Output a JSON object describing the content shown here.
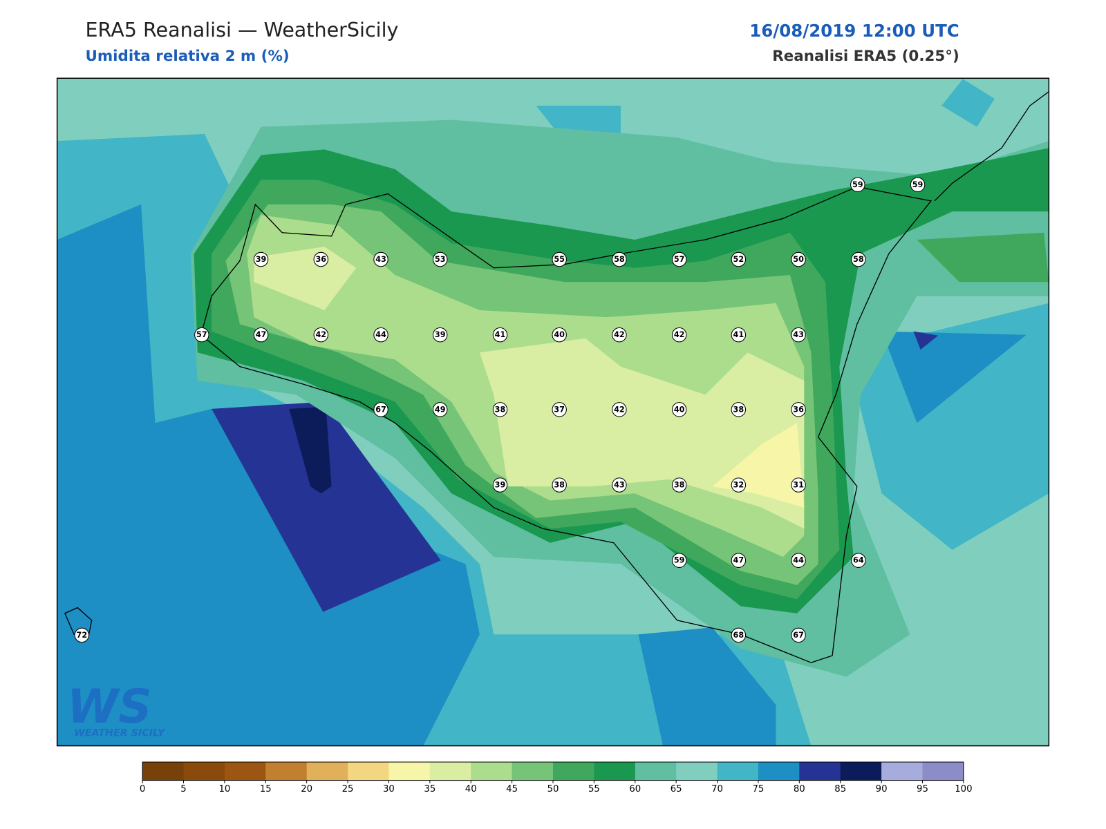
{
  "header": {
    "title": "ERA5 Reanalisi — WeatherSicily",
    "subtitle": "Umidita relativa 2 m (%)",
    "datetime": "16/08/2019 12:00 UTC",
    "source": "Reanalisi ERA5 (0.25°)"
  },
  "stations": [
    59,
    59,
    39,
    36,
    43,
    53,
    55,
    58,
    57,
    52,
    50,
    58,
    57,
    47,
    42,
    44,
    39,
    41,
    40,
    42,
    42,
    41,
    43,
    67,
    49,
    38,
    37,
    42,
    40,
    38,
    36,
    39,
    38,
    43,
    38,
    32,
    31,
    59,
    47,
    44,
    64,
    72,
    68,
    67
  ],
  "colorbar": {
    "ticks": [
      0,
      5,
      10,
      15,
      20,
      25,
      30,
      35,
      40,
      45,
      50,
      55,
      60,
      65,
      70,
      75,
      80,
      85,
      90,
      95,
      100
    ],
    "colors": [
      "#784109",
      "#8a4a0c",
      "#9c5612",
      "#c0802f",
      "#e0b05a",
      "#f2d680",
      "#f6f5a8",
      "#d9eda3",
      "#acdd8c",
      "#76c477",
      "#3fa85c",
      "#1a9850",
      "#5fbfa0",
      "#80cfbe",
      "#42b5c6",
      "#1d8fc4",
      "#253494",
      "#0c1c5a",
      "#a6acdc",
      "#8c8cc8"
    ]
  },
  "logo": {
    "mark": "WS",
    "name": "WEATHER SICILY"
  }
}
